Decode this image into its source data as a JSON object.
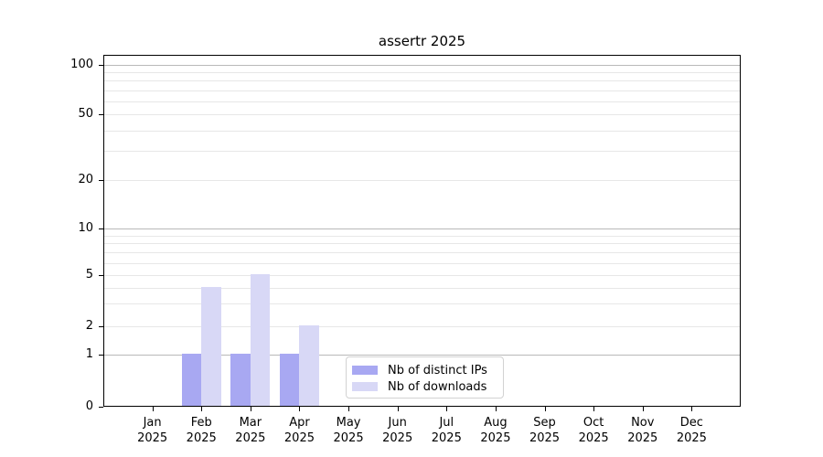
{
  "chart_data": {
    "type": "bar",
    "title": "assertr 2025",
    "x_axis": {
      "months": [
        "Jan",
        "Feb",
        "Mar",
        "Apr",
        "May",
        "Jun",
        "Jul",
        "Aug",
        "Sep",
        "Oct",
        "Nov",
        "Dec"
      ],
      "year": "2025",
      "categories": [
        "Jan 2025",
        "Feb 2025",
        "Mar 2025",
        "Apr 2025",
        "May 2025",
        "Jun 2025",
        "Jul 2025",
        "Aug 2025",
        "Sep 2025",
        "Oct 2025",
        "Nov 2025",
        "Dec 2025"
      ]
    },
    "y_axis": {
      "scale": "log-like with zero baseline",
      "tick_labels": [
        "0",
        "1",
        "2",
        "5",
        "10",
        "20",
        "50",
        "100"
      ],
      "major_grid_values": [
        1,
        10,
        100
      ],
      "minor_grid_values": [
        2,
        3,
        4,
        5,
        6,
        7,
        8,
        9,
        20,
        30,
        40,
        50,
        60,
        70,
        80,
        90
      ]
    },
    "series": [
      {
        "name": "Nb of distinct IPs",
        "color": "#a8a8f2",
        "values": [
          0,
          1,
          1,
          1,
          0,
          0,
          0,
          0,
          0,
          0,
          0,
          0
        ]
      },
      {
        "name": "Nb of downloads",
        "color": "#d8d8f6",
        "values": [
          0,
          4,
          5,
          2,
          0,
          0,
          0,
          0,
          0,
          0,
          0,
          0
        ]
      }
    ],
    "legend": {
      "position": "bottom-center",
      "border_color": "#d2d2d2"
    },
    "grid": {
      "major_color": "#b9b9b9",
      "minor_color": "#e7e7e7"
    },
    "colors": {
      "spine": "#000000",
      "background": "#ffffff",
      "text": "#000000"
    }
  }
}
